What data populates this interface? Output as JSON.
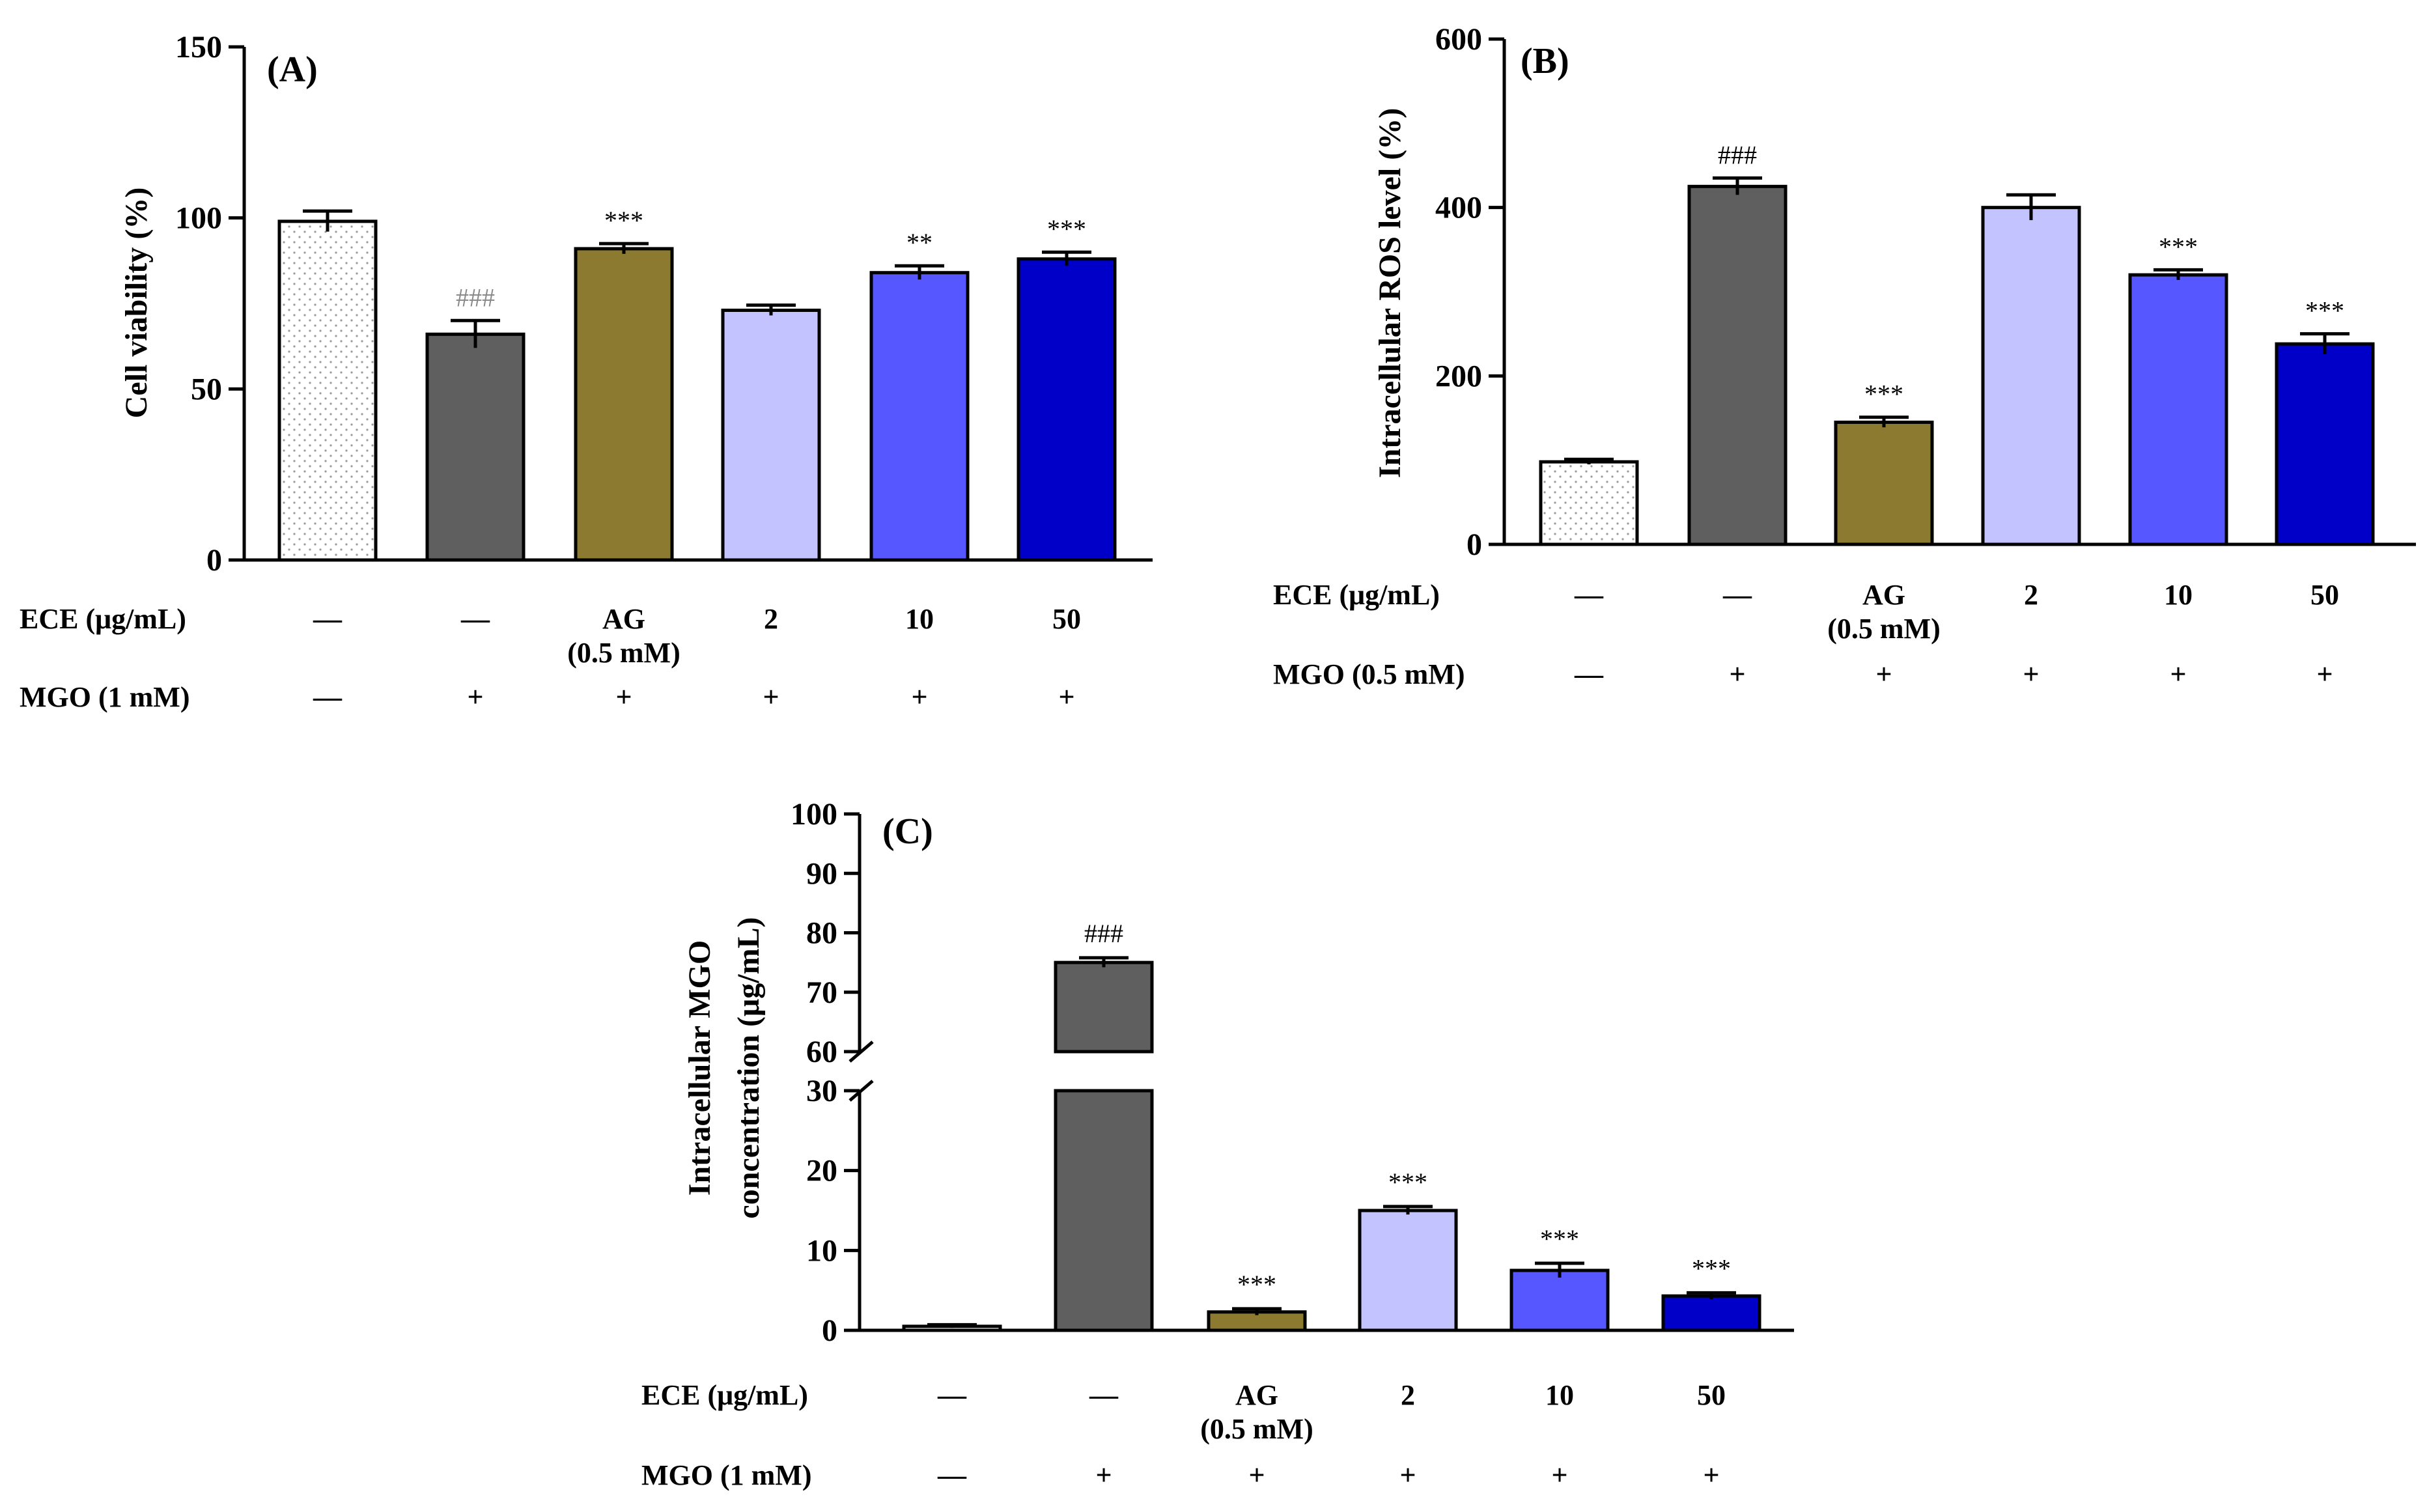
{
  "chart_data": [
    {
      "type": "bar",
      "panel_label": "(A)",
      "ylabel": "Cell viability  (%)",
      "yticks": [
        "0",
        "50",
        "100",
        "150"
      ],
      "ylim": [
        0,
        150
      ],
      "values": [
        99,
        66,
        91,
        73,
        84,
        88
      ],
      "errors": [
        3,
        4,
        1.5,
        1.5,
        2,
        2
      ],
      "significance": [
        "",
        "###",
        "***",
        "",
        "**",
        "***"
      ],
      "colors": [
        "#f2f2f2",
        "#5f5f5f",
        "#8c7a30",
        "#c3c3ff",
        "#5757ff",
        "#0000c8"
      ],
      "rows": [
        {
          "label": "ECE (μg/mL)",
          "cells": [
            "—",
            "—",
            "AG",
            "2",
            "10",
            "50"
          ],
          "sub": [
            "",
            "",
            "(0.5 mM)",
            "",
            "",
            ""
          ]
        },
        {
          "label": "MGO (1 mM)",
          "cells": [
            "—",
            "+",
            "+",
            "+",
            "+",
            "+"
          ]
        }
      ]
    },
    {
      "type": "bar",
      "panel_label": "(B)",
      "ylabel": "Intracellular  ROS level  (%)",
      "yticks": [
        "0",
        "200",
        "400",
        "600"
      ],
      "ylim": [
        0,
        600
      ],
      "values": [
        98,
        425,
        145,
        400,
        320,
        238
      ],
      "errors": [
        3,
        10,
        6,
        15,
        6,
        12
      ],
      "significance": [
        "",
        "###",
        "***",
        "",
        "***",
        "***"
      ],
      "colors": [
        "#f2f2f2",
        "#5f5f5f",
        "#8c7a30",
        "#c3c3ff",
        "#5757ff",
        "#0000c8"
      ],
      "rows": [
        {
          "label": "ECE (μg/mL)",
          "cells": [
            "—",
            "—",
            "AG",
            "2",
            "10",
            "50"
          ],
          "sub": [
            "",
            "",
            "(0.5 mM)",
            "",
            "",
            ""
          ]
        },
        {
          "label": "MGO (0.5 mM)",
          "cells": [
            "—",
            "+",
            "+",
            "+",
            "+",
            "+"
          ]
        }
      ]
    },
    {
      "type": "bar",
      "panel_label": "(C)",
      "ylabel_line1": "Intracellular  MGO",
      "ylabel_line2": "concentration  (μg/mL)",
      "yticks_lower": [
        "0",
        "10",
        "20",
        "30"
      ],
      "yticks_upper": [
        "60",
        "70",
        "80",
        "90",
        "100"
      ],
      "ylim_lower": [
        0,
        30
      ],
      "ylim_upper": [
        60,
        100
      ],
      "values": [
        0.5,
        75,
        2.3,
        15,
        7.5,
        4.3
      ],
      "errors": [
        0.2,
        0.8,
        0.4,
        0.5,
        0.9,
        0.4
      ],
      "significance": [
        "",
        "###",
        "***",
        "***",
        "***",
        "***"
      ],
      "colors": [
        "#f2f2f2",
        "#5f5f5f",
        "#8c7a30",
        "#c3c3ff",
        "#5757ff",
        "#0000c8"
      ],
      "rows": [
        {
          "label": "ECE (μg/mL)",
          "cells": [
            "—",
            "—",
            "AG",
            "2",
            "10",
            "50"
          ],
          "sub": [
            "",
            "",
            "(0.5 mM)",
            "",
            "",
            ""
          ]
        },
        {
          "label": "MGO (1 mM)",
          "cells": [
            "—",
            "+",
            "+",
            "+",
            "+",
            "+"
          ]
        }
      ]
    }
  ]
}
